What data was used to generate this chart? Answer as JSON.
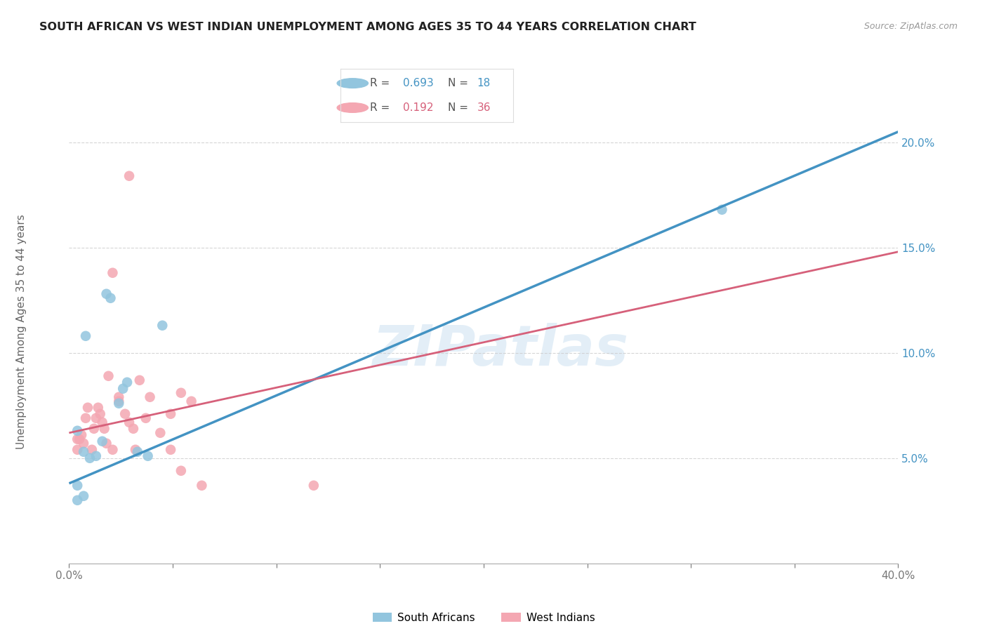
{
  "title": "SOUTH AFRICAN VS WEST INDIAN UNEMPLOYMENT AMONG AGES 35 TO 44 YEARS CORRELATION CHART",
  "source": "Source: ZipAtlas.com",
  "ylabel": "Unemployment Among Ages 35 to 44 years",
  "xlim": [
    0.0,
    0.4
  ],
  "ylim": [
    0.0,
    0.22
  ],
  "yticks_right": [
    0.05,
    0.1,
    0.15,
    0.2
  ],
  "ytick_labels_right": [
    "5.0%",
    "10.0%",
    "15.0%",
    "20.0%"
  ],
  "legend_blue_r": "0.693",
  "legend_blue_n": "18",
  "legend_pink_r": "0.192",
  "legend_pink_n": "36",
  "blue_color": "#92c5de",
  "pink_color": "#f4a7b2",
  "blue_line_color": "#4393c3",
  "pink_line_color": "#d6607a",
  "south_africans_label": "South Africans",
  "west_indians_label": "West Indians",
  "watermark": "ZIPatlas",
  "blue_scatter_x": [
    0.004,
    0.018,
    0.02,
    0.008,
    0.028,
    0.026,
    0.024,
    0.045,
    0.007,
    0.01,
    0.013,
    0.016,
    0.033,
    0.038,
    0.004,
    0.007,
    0.315,
    0.004
  ],
  "blue_scatter_y": [
    0.063,
    0.128,
    0.126,
    0.108,
    0.086,
    0.083,
    0.076,
    0.113,
    0.053,
    0.05,
    0.051,
    0.058,
    0.053,
    0.051,
    0.037,
    0.032,
    0.168,
    0.03
  ],
  "pink_scatter_x": [
    0.004,
    0.004,
    0.005,
    0.006,
    0.007,
    0.008,
    0.009,
    0.011,
    0.012,
    0.013,
    0.014,
    0.015,
    0.016,
    0.017,
    0.018,
    0.019,
    0.021,
    0.024,
    0.024,
    0.027,
    0.029,
    0.031,
    0.032,
    0.034,
    0.037,
    0.039,
    0.044,
    0.049,
    0.049,
    0.054,
    0.059,
    0.064,
    0.118,
    0.054,
    0.029,
    0.021
  ],
  "pink_scatter_y": [
    0.059,
    0.054,
    0.059,
    0.061,
    0.057,
    0.069,
    0.074,
    0.054,
    0.064,
    0.069,
    0.074,
    0.071,
    0.067,
    0.064,
    0.057,
    0.089,
    0.054,
    0.077,
    0.079,
    0.071,
    0.067,
    0.064,
    0.054,
    0.087,
    0.069,
    0.079,
    0.062,
    0.054,
    0.071,
    0.081,
    0.077,
    0.037,
    0.037,
    0.044,
    0.184,
    0.138
  ],
  "blue_line_x0": 0.0,
  "blue_line_y0": 0.038,
  "blue_line_x1": 0.4,
  "blue_line_y1": 0.205,
  "pink_line_x0": 0.0,
  "pink_line_y0": 0.062,
  "pink_line_x1": 0.4,
  "pink_line_y1": 0.148,
  "background_color": "#ffffff",
  "grid_color": "#cccccc"
}
